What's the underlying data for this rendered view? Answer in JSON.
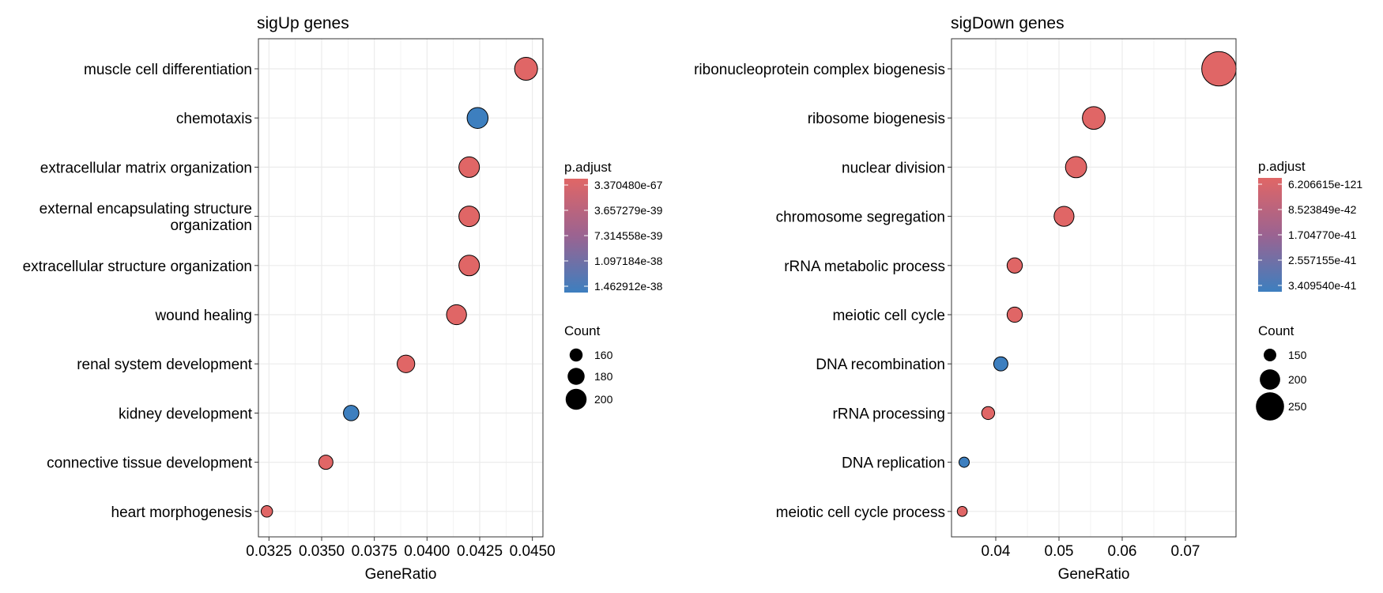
{
  "chart_data": [
    {
      "type": "scatter",
      "title": "sigUp genes",
      "xlabel": "GeneRatio",
      "ylabel": "",
      "xlim": [
        0.032,
        0.0455
      ],
      "xticks": [
        0.0325,
        0.035,
        0.0375,
        0.04,
        0.0425,
        0.045
      ],
      "xtick_labels": [
        "0.0325",
        "0.0350",
        "0.0375",
        "0.0400",
        "0.0425",
        "0.0450"
      ],
      "grid": true,
      "categories": [
        "muscle cell differentiation",
        "chemotaxis",
        "extracellular matrix organization",
        "external encapsulating structure organization",
        "extracellular structure organization",
        "wound healing",
        "renal system development",
        "kidney development",
        "connective tissue development",
        "heart morphogenesis"
      ],
      "category_lines": [
        [
          "muscle cell differentiation"
        ],
        [
          "chemotaxis"
        ],
        [
          "extracellular matrix organization"
        ],
        [
          "external encapsulating structure",
          "organization"
        ],
        [
          "extracellular structure organization"
        ],
        [
          "wound healing"
        ],
        [
          "renal system development"
        ],
        [
          "kidney development"
        ],
        [
          "connective tissue development"
        ],
        [
          "heart morphogenesis"
        ]
      ],
      "points": [
        {
          "category": "muscle cell differentiation",
          "x": 0.0447,
          "count": 210,
          "p_adjust": "low"
        },
        {
          "category": "chemotaxis",
          "x": 0.0424,
          "count": 200,
          "p_adjust": "high"
        },
        {
          "category": "extracellular matrix organization",
          "x": 0.042,
          "count": 198,
          "p_adjust": "low"
        },
        {
          "category": "external encapsulating structure organization",
          "x": 0.042,
          "count": 198,
          "p_adjust": "low"
        },
        {
          "category": "extracellular structure organization",
          "x": 0.042,
          "count": 198,
          "p_adjust": "low"
        },
        {
          "category": "wound healing",
          "x": 0.0414,
          "count": 195,
          "p_adjust": "low"
        },
        {
          "category": "renal system development",
          "x": 0.039,
          "count": 183,
          "p_adjust": "low"
        },
        {
          "category": "kidney development",
          "x": 0.0364,
          "count": 172,
          "p_adjust": "high"
        },
        {
          "category": "connective tissue development",
          "x": 0.0352,
          "count": 166,
          "p_adjust": "low"
        },
        {
          "category": "heart morphogenesis",
          "x": 0.0324,
          "count": 152,
          "p_adjust": "low"
        }
      ],
      "color_legend": {
        "title": "p.adjust",
        "labels": [
          "3.370480e-67",
          "3.657279e-39",
          "7.314558e-39",
          "1.097184e-38",
          "1.462912e-38"
        ]
      },
      "size_legend": {
        "title": "Count",
        "labels": [
          "160",
          "180",
          "200"
        ],
        "values": [
          160,
          180,
          200
        ]
      }
    },
    {
      "type": "scatter",
      "title": "sigDown genes",
      "xlabel": "GeneRatio",
      "ylabel": "",
      "xlim": [
        0.033,
        0.078
      ],
      "xticks": [
        0.04,
        0.05,
        0.06,
        0.07
      ],
      "xtick_labels": [
        "0.04",
        "0.05",
        "0.06",
        "0.07"
      ],
      "grid": true,
      "categories": [
        "ribonucleoprotein complex biogenesis",
        "ribosome biogenesis",
        "nuclear division",
        "chromosome segregation",
        "rRNA metabolic process",
        "meiotic cell cycle",
        "DNA recombination",
        "rRNA processing",
        "DNA replication",
        "meiotic cell cycle process"
      ],
      "category_lines": [
        [
          "ribonucleoprotein complex biogenesis"
        ],
        [
          "ribosome biogenesis"
        ],
        [
          "nuclear division"
        ],
        [
          "chromosome segregation"
        ],
        [
          "rRNA metabolic process"
        ],
        [
          "meiotic cell cycle"
        ],
        [
          "DNA recombination"
        ],
        [
          "rRNA processing"
        ],
        [
          "DNA replication"
        ],
        [
          "meiotic cell cycle process"
        ]
      ],
      "points": [
        {
          "category": "ribonucleoprotein complex biogenesis",
          "x": 0.0753,
          "count": 290,
          "p_adjust": "low"
        },
        {
          "category": "ribosome biogenesis",
          "x": 0.0555,
          "count": 215,
          "p_adjust": "low"
        },
        {
          "category": "nuclear division",
          "x": 0.0527,
          "count": 205,
          "p_adjust": "low"
        },
        {
          "category": "chromosome segregation",
          "x": 0.0508,
          "count": 197,
          "p_adjust": "low"
        },
        {
          "category": "rRNA metabolic process",
          "x": 0.043,
          "count": 167,
          "p_adjust": "low"
        },
        {
          "category": "meiotic cell cycle",
          "x": 0.043,
          "count": 167,
          "p_adjust": "low"
        },
        {
          "category": "DNA recombination",
          "x": 0.0408,
          "count": 160,
          "p_adjust": "high"
        },
        {
          "category": "rRNA processing",
          "x": 0.0388,
          "count": 152,
          "p_adjust": "low"
        },
        {
          "category": "DNA replication",
          "x": 0.035,
          "count": 135,
          "p_adjust": "high"
        },
        {
          "category": "meiotic cell cycle process",
          "x": 0.0347,
          "count": 133,
          "p_adjust": "low"
        }
      ],
      "color_legend": {
        "title": "p.adjust",
        "labels": [
          "6.206615e-121",
          "8.523849e-42",
          "1.704770e-41",
          "2.557155e-41",
          "3.409540e-41"
        ]
      },
      "size_legend": {
        "title": "Count",
        "labels": [
          "150",
          "200",
          "250"
        ],
        "values": [
          150,
          200,
          250
        ]
      }
    }
  ],
  "colors": {
    "low_p": "#E06666",
    "mid_p": "#9B6391",
    "high_p": "#3D7FBF",
    "grid": "#EBEBEB",
    "border": "#333333"
  }
}
